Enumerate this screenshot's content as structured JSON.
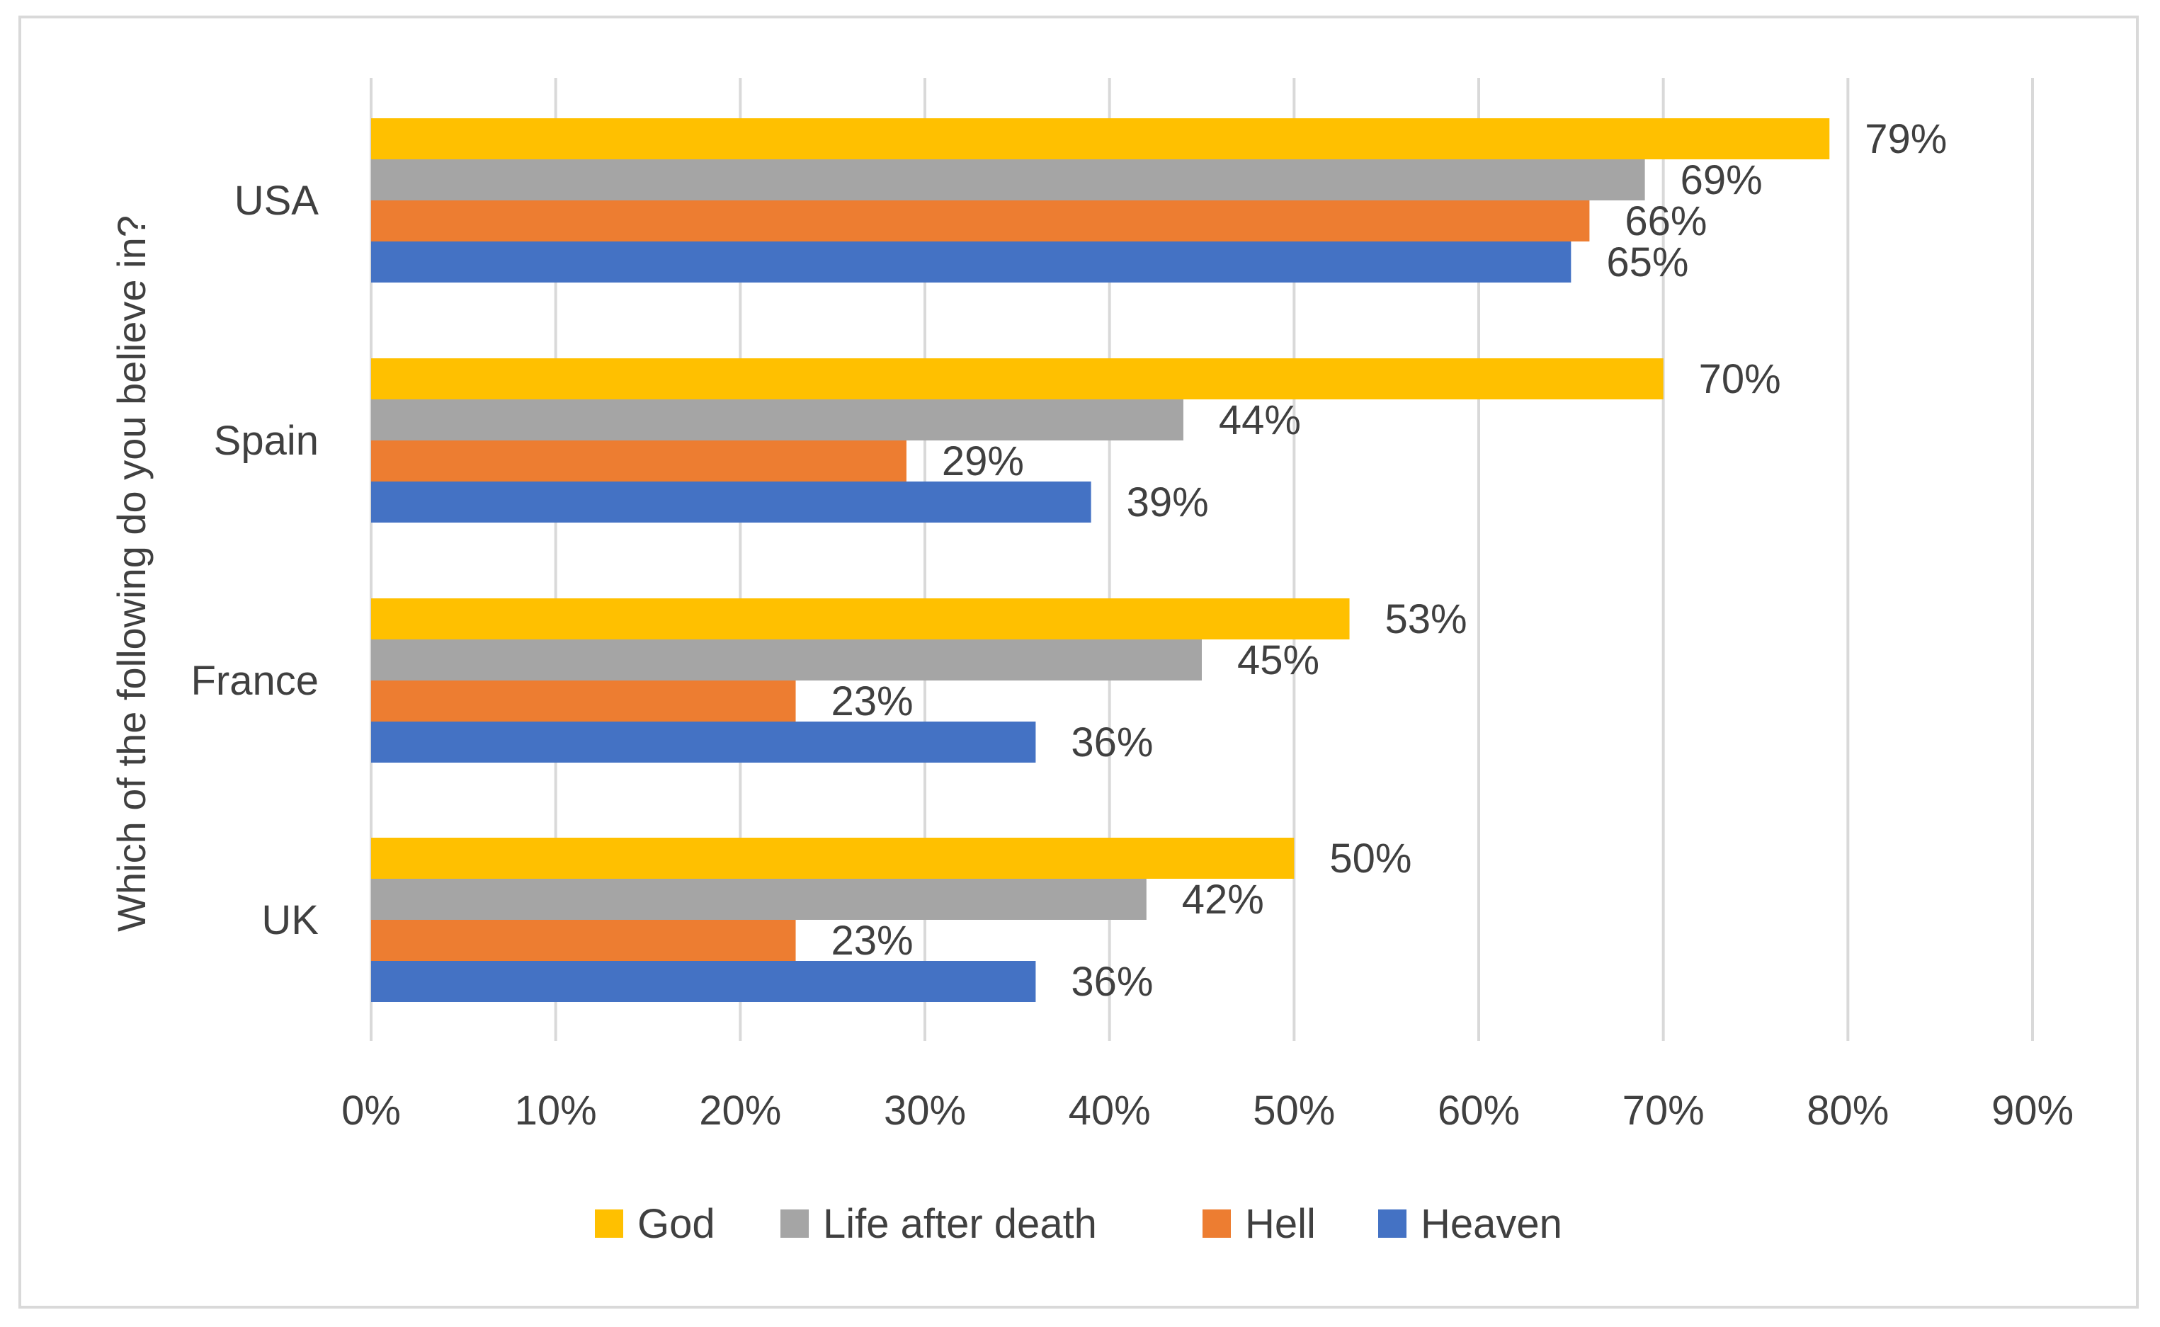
{
  "chart_data": {
    "type": "bar",
    "orientation": "horizontal",
    "title": "",
    "ylabel": "Which of the following do you believe in?",
    "xlabel": "",
    "categories": [
      "USA",
      "Spain",
      "France",
      "UK"
    ],
    "series": [
      {
        "name": "God",
        "color": "#FFC000",
        "values": [
          79,
          70,
          53,
          50
        ]
      },
      {
        "name": "Life after death",
        "color": "#A5A5A5",
        "values": [
          69,
          44,
          45,
          42
        ]
      },
      {
        "name": "Hell",
        "color": "#ED7D31",
        "values": [
          66,
          29,
          23,
          23
        ]
      },
      {
        "name": "Heaven",
        "color": "#4472C4",
        "values": [
          65,
          39,
          36,
          36
        ]
      }
    ],
    "xlim": [
      0,
      90
    ],
    "x_ticks": [
      0,
      10,
      20,
      30,
      40,
      50,
      60,
      70,
      80,
      90
    ],
    "x_tick_labels": [
      "0%",
      "10%",
      "20%",
      "30%",
      "40%",
      "50%",
      "60%",
      "70%",
      "80%",
      "90%"
    ],
    "data_labels": [
      [
        "79%",
        "70%",
        "53%",
        "50%"
      ],
      [
        "69%",
        "44%",
        "45%",
        "42%"
      ],
      [
        "66%",
        "29%",
        "23%",
        "23%"
      ],
      [
        "65%",
        "39%",
        "36%",
        "36%"
      ]
    ],
    "grid": true,
    "legend_position": "bottom",
    "gridline_color": "#D9D9D9",
    "text_color": "#404040"
  }
}
